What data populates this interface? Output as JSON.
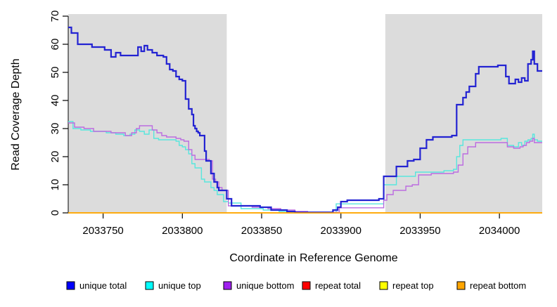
{
  "chart_data": {
    "type": "line",
    "subtype": "step",
    "title": "",
    "xlabel": "Coordinate in Reference Genome",
    "ylabel": "Read Coverage Depth",
    "xlim": [
      2033728,
      2034027
    ],
    "ylim": [
      0,
      70
    ],
    "xticks": [
      2033750,
      2033800,
      2033850,
      2033900,
      2033950,
      2034000
    ],
    "yticks": [
      0,
      10,
      20,
      30,
      40,
      50,
      60,
      70
    ],
    "grid": false,
    "legend_position": "bottom",
    "panel_background": "#dcdcdc",
    "page_background": "#ffffff",
    "axis_color": "#000000",
    "unshaded_region": {
      "from": 2033828,
      "to": 2033928,
      "color": "#ffffff"
    },
    "draw_order": [
      3,
      4,
      1,
      2,
      0,
      5
    ],
    "series": [
      {
        "name": "unique total",
        "legend_color": "#0000ff",
        "line_color": "#2323d2",
        "line_width": 2.2,
        "points": [
          [
            2033728,
            66
          ],
          [
            2033730,
            64
          ],
          [
            2033734,
            60
          ],
          [
            2033743,
            59
          ],
          [
            2033751,
            58
          ],
          [
            2033755,
            55.5
          ],
          [
            2033758,
            57
          ],
          [
            2033761,
            56
          ],
          [
            2033770,
            56
          ],
          [
            2033772,
            59
          ],
          [
            2033774,
            57.5
          ],
          [
            2033776,
            59.5
          ],
          [
            2033778,
            58
          ],
          [
            2033781,
            57
          ],
          [
            2033784,
            56
          ],
          [
            2033788,
            55.5
          ],
          [
            2033790,
            53
          ],
          [
            2033792,
            51
          ],
          [
            2033794,
            50.5
          ],
          [
            2033796,
            48.5
          ],
          [
            2033798,
            47.5
          ],
          [
            2033800,
            47
          ],
          [
            2033802,
            40.5
          ],
          [
            2033804,
            37
          ],
          [
            2033806,
            35
          ],
          [
            2033807,
            31
          ],
          [
            2033808,
            30
          ],
          [
            2033809,
            29
          ],
          [
            2033810,
            28.5
          ],
          [
            2033811,
            27.5
          ],
          [
            2033814,
            22
          ],
          [
            2033815,
            18.5
          ],
          [
            2033818,
            14
          ],
          [
            2033820,
            11
          ],
          [
            2033822,
            9
          ],
          [
            2033823,
            8
          ],
          [
            2033828,
            5
          ],
          [
            2033831,
            2.5
          ],
          [
            2033849,
            2
          ],
          [
            2033856,
            1
          ],
          [
            2033866,
            0.5
          ],
          [
            2033871,
            0.2
          ],
          [
            2033895,
            1
          ],
          [
            2033898,
            2
          ],
          [
            2033900,
            4
          ],
          [
            2033904,
            4.5
          ],
          [
            2033924,
            5
          ],
          [
            2033927,
            13
          ],
          [
            2033935,
            16.5
          ],
          [
            2033942,
            18.5
          ],
          [
            2033946,
            19
          ],
          [
            2033950,
            23
          ],
          [
            2033954,
            26
          ],
          [
            2033958,
            27
          ],
          [
            2033970,
            27.5
          ],
          [
            2033973,
            38.5
          ],
          [
            2033977,
            41
          ],
          [
            2033979,
            43
          ],
          [
            2033981,
            45
          ],
          [
            2033985,
            49.5
          ],
          [
            2033987,
            52
          ],
          [
            2033999,
            52.5
          ],
          [
            2034004,
            48.5
          ],
          [
            2034006,
            46
          ],
          [
            2034010,
            47.5
          ],
          [
            2034012,
            46.5
          ],
          [
            2034014,
            48
          ],
          [
            2034016,
            47
          ],
          [
            2034018,
            53
          ],
          [
            2034020,
            54.5
          ],
          [
            2034021,
            57.5
          ],
          [
            2034022,
            53
          ],
          [
            2034024,
            50.5
          ]
        ]
      },
      {
        "name": "unique top",
        "legend_color": "#00ffff",
        "line_color": "#58e6dd",
        "line_width": 1.4,
        "points": [
          [
            2033728,
            32.5
          ],
          [
            2033731,
            30
          ],
          [
            2033736,
            29.5
          ],
          [
            2033742,
            29
          ],
          [
            2033752,
            28.5
          ],
          [
            2033758,
            28
          ],
          [
            2033763,
            27.5
          ],
          [
            2033767,
            28
          ],
          [
            2033770,
            29.5
          ],
          [
            2033773,
            29
          ],
          [
            2033776,
            28
          ],
          [
            2033779,
            29.5
          ],
          [
            2033782,
            26.5
          ],
          [
            2033785,
            26
          ],
          [
            2033796,
            25.5
          ],
          [
            2033798,
            24
          ],
          [
            2033800,
            23.5
          ],
          [
            2033802,
            22.5
          ],
          [
            2033804,
            21
          ],
          [
            2033806,
            17.5
          ],
          [
            2033808,
            16
          ],
          [
            2033812,
            12
          ],
          [
            2033814,
            11
          ],
          [
            2033818,
            9
          ],
          [
            2033820,
            8
          ],
          [
            2033822,
            6.5
          ],
          [
            2033826,
            4
          ],
          [
            2033829,
            3.5
          ],
          [
            2033837,
            1.5
          ],
          [
            2033851,
            1
          ],
          [
            2033861,
            0.5
          ],
          [
            2033869,
            0.2
          ],
          [
            2033897,
            3.2
          ],
          [
            2033927,
            10
          ],
          [
            2033935,
            13
          ],
          [
            2033947,
            14.5
          ],
          [
            2033965,
            15
          ],
          [
            2033971,
            15.5
          ],
          [
            2033973,
            20
          ],
          [
            2033975,
            24
          ],
          [
            2033977,
            26
          ],
          [
            2034001,
            26.5
          ],
          [
            2034005,
            24
          ],
          [
            2034009,
            23.5
          ],
          [
            2034012,
            25
          ],
          [
            2034014,
            24
          ],
          [
            2034016,
            25.5
          ],
          [
            2034018,
            26
          ],
          [
            2034020,
            26.5
          ],
          [
            2034021,
            28
          ],
          [
            2034022,
            26
          ],
          [
            2034024,
            25.5
          ]
        ]
      },
      {
        "name": "unique bottom",
        "legend_color": "#a020f0",
        "line_color": "#bb6ce0",
        "line_width": 1.4,
        "points": [
          [
            2033728,
            32
          ],
          [
            2033732,
            30.5
          ],
          [
            2033738,
            30
          ],
          [
            2033744,
            29
          ],
          [
            2033755,
            28.5
          ],
          [
            2033764,
            27.5
          ],
          [
            2033768,
            28.5
          ],
          [
            2033771,
            30
          ],
          [
            2033773,
            31
          ],
          [
            2033781,
            29.5
          ],
          [
            2033784,
            28.5
          ],
          [
            2033787,
            27.5
          ],
          [
            2033790,
            27
          ],
          [
            2033796,
            26.5
          ],
          [
            2033799,
            26
          ],
          [
            2033801,
            25.5
          ],
          [
            2033804,
            22.5
          ],
          [
            2033806,
            20.5
          ],
          [
            2033808,
            19
          ],
          [
            2033817,
            18.5
          ],
          [
            2033819,
            12
          ],
          [
            2033821,
            11
          ],
          [
            2033823,
            9
          ],
          [
            2033825,
            8
          ],
          [
            2033829,
            2.5
          ],
          [
            2033844,
            2
          ],
          [
            2033854,
            1.5
          ],
          [
            2033862,
            1
          ],
          [
            2033871,
            0.5
          ],
          [
            2033879,
            0.2
          ],
          [
            2033899,
            1.8
          ],
          [
            2033927,
            4.5
          ],
          [
            2033929,
            6.5
          ],
          [
            2033933,
            8
          ],
          [
            2033941,
            9.5
          ],
          [
            2033945,
            10
          ],
          [
            2033949,
            13.5
          ],
          [
            2033957,
            14
          ],
          [
            2033971,
            14.5
          ],
          [
            2033974,
            17
          ],
          [
            2033977,
            21
          ],
          [
            2033980,
            23.5
          ],
          [
            2033985,
            25
          ],
          [
            2034003,
            25
          ],
          [
            2034005,
            23.5
          ],
          [
            2034009,
            23
          ],
          [
            2034013,
            23.5
          ],
          [
            2034015,
            24
          ],
          [
            2034017,
            25
          ],
          [
            2034019,
            25.5
          ],
          [
            2034021,
            26.5
          ],
          [
            2034022,
            25
          ],
          [
            2034024,
            25
          ]
        ]
      },
      {
        "name": "repeat total",
        "legend_color": "#ff0000",
        "line_color": "#ff0000",
        "line_width": 1.4,
        "points": [
          [
            2033728,
            0
          ],
          [
            2034027,
            0
          ]
        ]
      },
      {
        "name": "repeat top",
        "legend_color": "#ffff00",
        "line_color": "#ffff00",
        "line_width": 1.4,
        "points": [
          [
            2033728,
            0
          ],
          [
            2034027,
            0
          ]
        ]
      },
      {
        "name": "repeat bottom",
        "legend_color": "#ffa500",
        "line_color": "#ffa500",
        "line_width": 1.6,
        "points": [
          [
            2033728,
            0
          ],
          [
            2034027,
            0
          ]
        ]
      }
    ]
  }
}
